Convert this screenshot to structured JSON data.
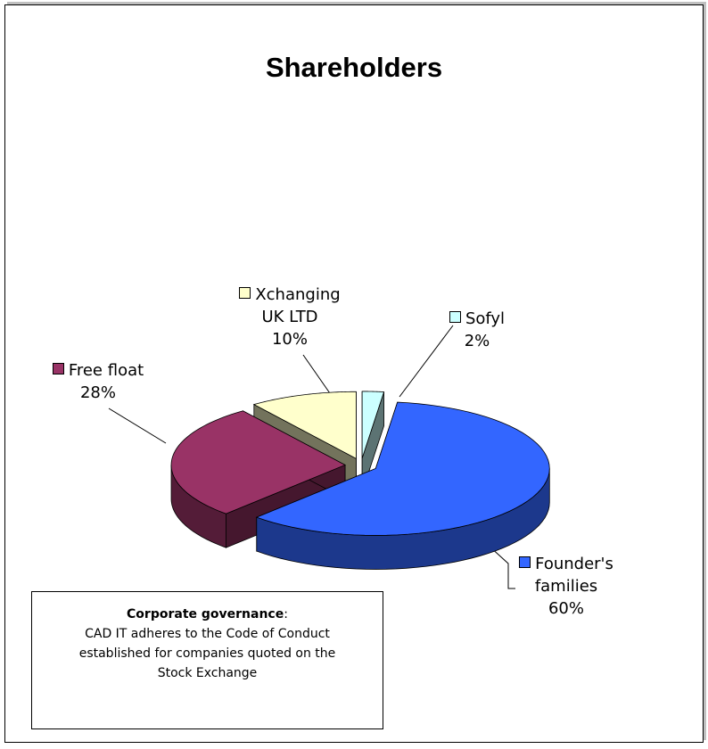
{
  "chart_data": {
    "type": "pie",
    "title": "Shareholders",
    "categories": [
      "Sofyl",
      "Founder's families",
      "Free float",
      "Xchanging UK LTD"
    ],
    "values": [
      2,
      60,
      28,
      10
    ],
    "value_labels": [
      "2%",
      "60%",
      "28%",
      "10%"
    ],
    "colors": [
      "#ccffff",
      "#3366ff",
      "#993366",
      "#ffffcc"
    ]
  },
  "note": {
    "heading": "Corporate governance",
    "punct": ":",
    "text": "CAD IT adheres to the Code of Conduct established for companies quoted on the Stock Exchange"
  }
}
